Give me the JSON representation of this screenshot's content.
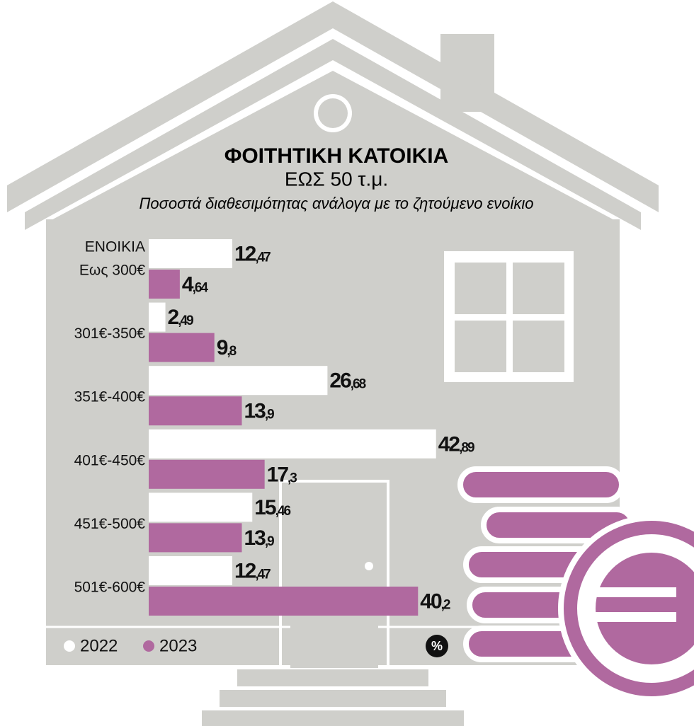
{
  "chart_data": {
    "type": "bar",
    "orientation": "horizontal",
    "title": [
      "ΦΟΙΤΗΤΙΚΗ ΚΑΤΟΙΚΙΑ",
      "ΕΩΣ 50 τ.μ."
    ],
    "subtitle": "Ποσοστά διαθεσιμότητας ανάλογα με το ζητούμενο ενοίκιο",
    "y_label": "ΕΝΟΙΚΙΑ",
    "unit": "%",
    "categories": [
      "Εως 300€",
      "301€-350€",
      "351€-400€",
      "401€-450€",
      "451€-500€",
      "501€-600€"
    ],
    "series": [
      {
        "name": "2022",
        "color": "#ffffff",
        "values": [
          12.47,
          2.49,
          26.68,
          42.89,
          15.46,
          12.47
        ],
        "value_labels": [
          "12,47",
          "2,49",
          "26,68",
          "42,89",
          "15,46",
          "12,47"
        ]
      },
      {
        "name": "2023",
        "color": "#b0699f",
        "values": [
          4.64,
          9.8,
          13.9,
          17.3,
          13.9,
          40.2
        ],
        "value_labels": [
          "4,64",
          "9,8",
          "13,9",
          "17,3",
          "13,9",
          "40,2"
        ]
      }
    ]
  }
}
